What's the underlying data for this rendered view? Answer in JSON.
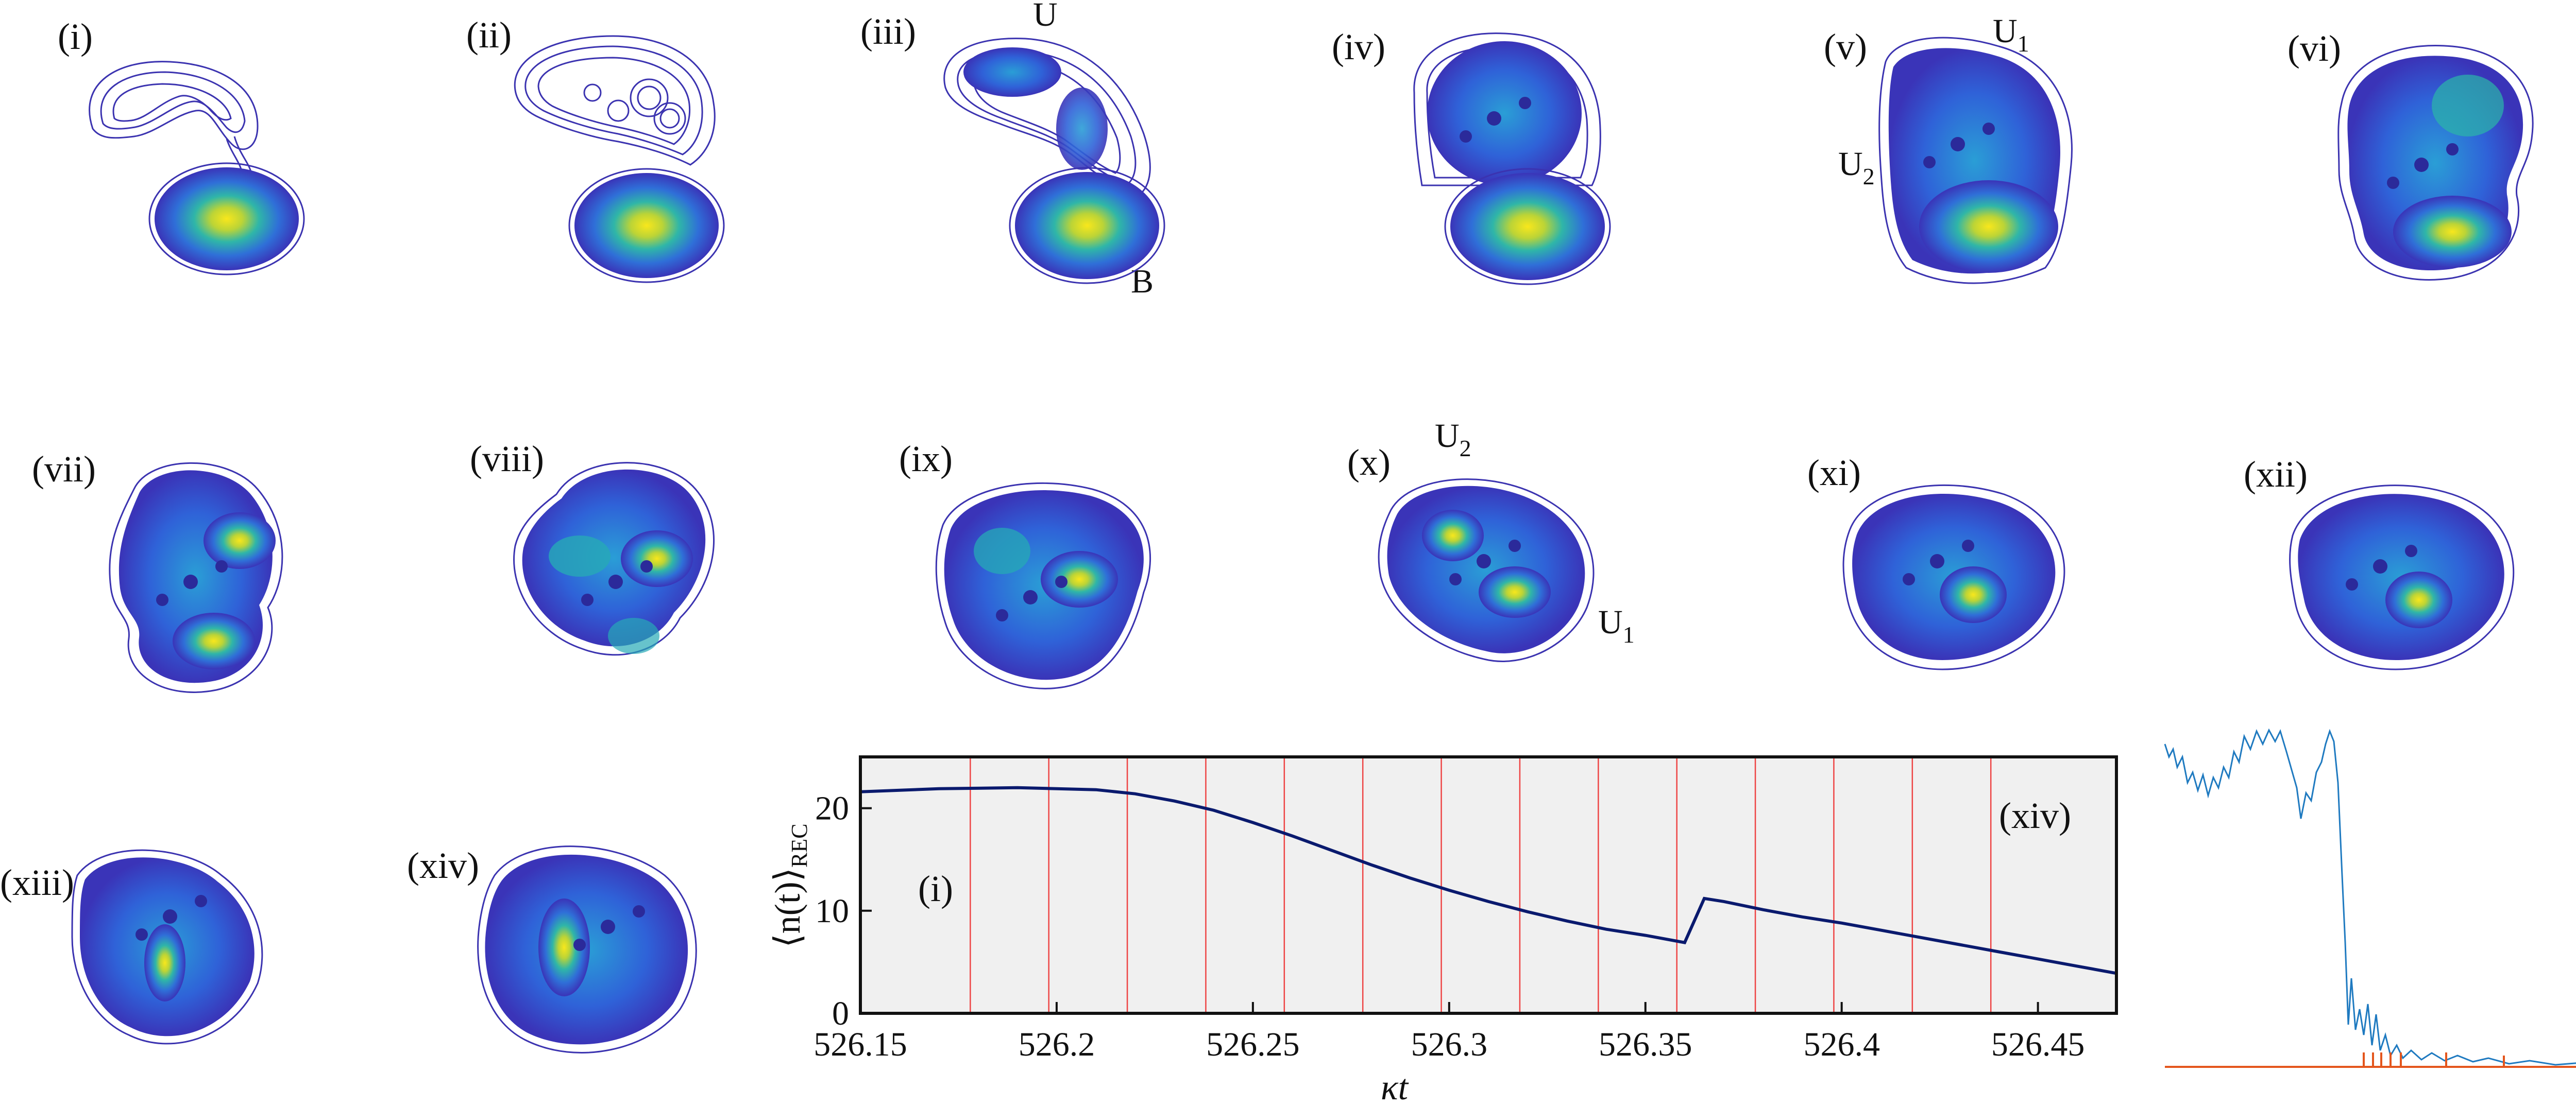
{
  "colors": {
    "contour": "#3b33b0",
    "plot_background": "#f0f0f0",
    "curve": "#0a1a6e",
    "event_lines": "#e85050",
    "record_trace": "#1f7ac0",
    "baseline": "#e4561d"
  },
  "panels": {
    "p1": "(i)",
    "p2": "(ii)",
    "p3": "(iii)",
    "p4": "(iv)",
    "p5": "(v)",
    "p6": "(vi)",
    "p7": "(vii)",
    "p8": "(viii)",
    "p9": "(ix)",
    "p10": "(x)",
    "p11": "(xi)",
    "p12": "(xii)",
    "p13": "(xiii)",
    "p14": "(xiv)"
  },
  "annotations": {
    "iii_top": "U",
    "iii_bottom": "B",
    "v_u1": "U",
    "v_u1_sub": "1",
    "v_u2": "U",
    "v_u2_sub": "2",
    "x_u2": "U",
    "x_u2_sub": "2",
    "x_u1": "U",
    "x_u1_sub": "1"
  },
  "chart_data": {
    "type": "line",
    "title": "",
    "xlabel": "κt",
    "ylabel": "⟨n(t)⟩REC",
    "ylabel_main": "⟨n(t)⟩",
    "ylabel_sub": "REC",
    "xlim": [
      526.15,
      526.47
    ],
    "ylim": [
      0,
      25
    ],
    "xticks": [
      "526.15",
      "526.2",
      "526.25",
      "526.3",
      "526.35",
      "526.4",
      "526.45"
    ],
    "yticks": [
      "0",
      "10",
      "20"
    ],
    "inner_labels": {
      "left": "(i)",
      "right": "(xiv)"
    },
    "event_times": [
      526.178,
      526.198,
      526.218,
      526.238,
      526.258,
      526.278,
      526.298,
      526.318,
      526.338,
      526.358,
      526.378,
      526.398,
      526.418,
      526.438
    ],
    "series": [
      {
        "name": "⟨n(t)⟩REC",
        "x": [
          526.15,
          526.17,
          526.19,
          526.21,
          526.22,
          526.23,
          526.24,
          526.25,
          526.26,
          526.27,
          526.28,
          526.29,
          526.3,
          526.31,
          526.32,
          526.33,
          526.34,
          526.35,
          526.36,
          526.365,
          526.37,
          526.38,
          526.39,
          526.4,
          526.41,
          526.42,
          526.43,
          526.44,
          526.45,
          526.46,
          526.47
        ],
        "y": [
          21.6,
          21.9,
          22.0,
          21.8,
          21.4,
          20.7,
          19.8,
          18.6,
          17.3,
          15.9,
          14.5,
          13.2,
          12.0,
          10.9,
          9.9,
          9.0,
          8.2,
          7.6,
          6.9,
          11.2,
          10.9,
          10.1,
          9.4,
          8.8,
          8.1,
          7.4,
          6.7,
          6.0,
          5.3,
          4.6,
          3.9
        ]
      }
    ]
  }
}
